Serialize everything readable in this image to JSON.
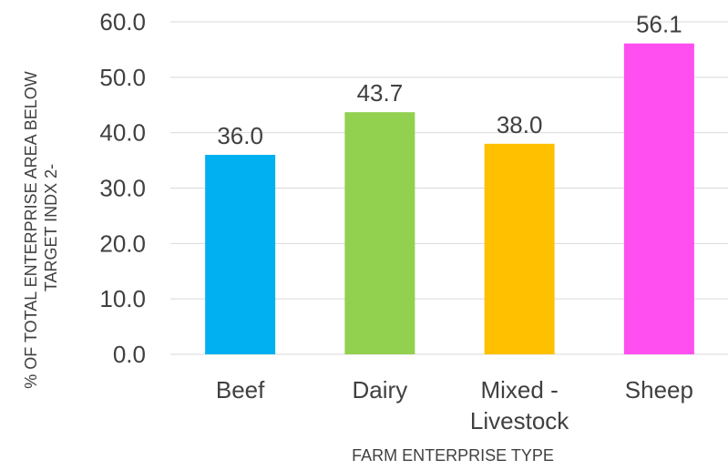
{
  "chart_data": {
    "type": "bar",
    "categories": [
      [
        "Beef"
      ],
      [
        "Dairy"
      ],
      [
        "Mixed -",
        "Livestock"
      ],
      [
        "Sheep"
      ]
    ],
    "values": [
      36.0,
      43.7,
      38.0,
      56.1
    ],
    "data_labels": [
      "36.0",
      "43.7",
      "38.0",
      "56.1"
    ],
    "colors": [
      "#00B0F0",
      "#92D050",
      "#FFC000",
      "#FF4FF0"
    ],
    "title": "",
    "xlabel": "FARM ENTERPRISE TYPE",
    "ylabel": [
      "% OF TOTAL ENTERPRISE AREA  BELOW",
      "TARGET INDX 2-"
    ],
    "ylim": [
      0,
      60
    ],
    "yticks": [
      0,
      10,
      20,
      30,
      40,
      50,
      60
    ],
    "ytick_labels": [
      "0.0",
      "10.0",
      "20.0",
      "30.0",
      "40.0",
      "50.0",
      "60.0"
    ],
    "grid": true,
    "gridline_color": "#D9D9D9"
  }
}
